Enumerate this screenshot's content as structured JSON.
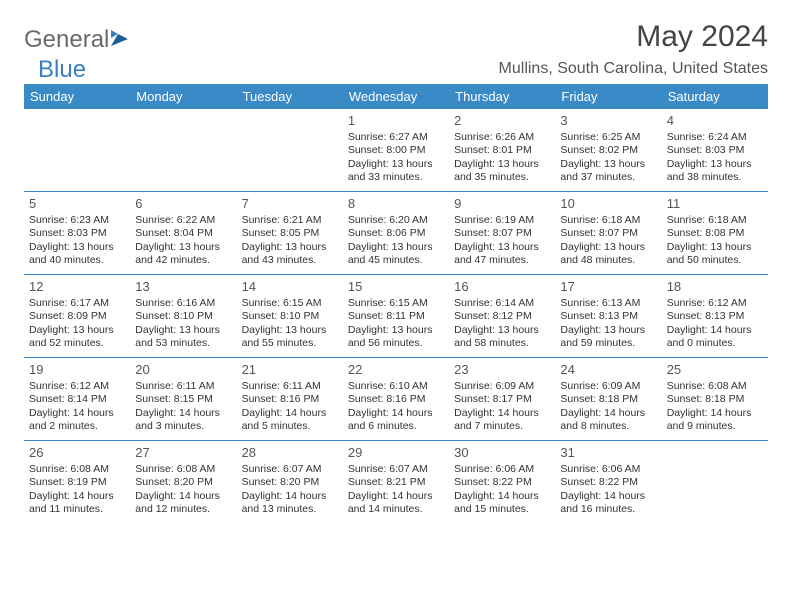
{
  "logo": {
    "part1": "General",
    "part2": "Blue"
  },
  "header": {
    "monthYear": "May 2024",
    "location": "Mullins, South Carolina, United States"
  },
  "daynames": [
    "Sunday",
    "Monday",
    "Tuesday",
    "Wednesday",
    "Thursday",
    "Friday",
    "Saturday"
  ],
  "colors": {
    "headerBar": "#3a8ac8",
    "weekBorder": "#3a8ac8",
    "logoGray": "#6a6a6a",
    "logoBlue": "#3a7fc4"
  },
  "weeks": [
    [
      {
        "n": "",
        "sr": "",
        "ss": "",
        "dl": ""
      },
      {
        "n": "",
        "sr": "",
        "ss": "",
        "dl": ""
      },
      {
        "n": "",
        "sr": "",
        "ss": "",
        "dl": ""
      },
      {
        "n": "1",
        "sr": "Sunrise: 6:27 AM",
        "ss": "Sunset: 8:00 PM",
        "dl": "Daylight: 13 hours and 33 minutes."
      },
      {
        "n": "2",
        "sr": "Sunrise: 6:26 AM",
        "ss": "Sunset: 8:01 PM",
        "dl": "Daylight: 13 hours and 35 minutes."
      },
      {
        "n": "3",
        "sr": "Sunrise: 6:25 AM",
        "ss": "Sunset: 8:02 PM",
        "dl": "Daylight: 13 hours and 37 minutes."
      },
      {
        "n": "4",
        "sr": "Sunrise: 6:24 AM",
        "ss": "Sunset: 8:03 PM",
        "dl": "Daylight: 13 hours and 38 minutes."
      }
    ],
    [
      {
        "n": "5",
        "sr": "Sunrise: 6:23 AM",
        "ss": "Sunset: 8:03 PM",
        "dl": "Daylight: 13 hours and 40 minutes."
      },
      {
        "n": "6",
        "sr": "Sunrise: 6:22 AM",
        "ss": "Sunset: 8:04 PM",
        "dl": "Daylight: 13 hours and 42 minutes."
      },
      {
        "n": "7",
        "sr": "Sunrise: 6:21 AM",
        "ss": "Sunset: 8:05 PM",
        "dl": "Daylight: 13 hours and 43 minutes."
      },
      {
        "n": "8",
        "sr": "Sunrise: 6:20 AM",
        "ss": "Sunset: 8:06 PM",
        "dl": "Daylight: 13 hours and 45 minutes."
      },
      {
        "n": "9",
        "sr": "Sunrise: 6:19 AM",
        "ss": "Sunset: 8:07 PM",
        "dl": "Daylight: 13 hours and 47 minutes."
      },
      {
        "n": "10",
        "sr": "Sunrise: 6:18 AM",
        "ss": "Sunset: 8:07 PM",
        "dl": "Daylight: 13 hours and 48 minutes."
      },
      {
        "n": "11",
        "sr": "Sunrise: 6:18 AM",
        "ss": "Sunset: 8:08 PM",
        "dl": "Daylight: 13 hours and 50 minutes."
      }
    ],
    [
      {
        "n": "12",
        "sr": "Sunrise: 6:17 AM",
        "ss": "Sunset: 8:09 PM",
        "dl": "Daylight: 13 hours and 52 minutes."
      },
      {
        "n": "13",
        "sr": "Sunrise: 6:16 AM",
        "ss": "Sunset: 8:10 PM",
        "dl": "Daylight: 13 hours and 53 minutes."
      },
      {
        "n": "14",
        "sr": "Sunrise: 6:15 AM",
        "ss": "Sunset: 8:10 PM",
        "dl": "Daylight: 13 hours and 55 minutes."
      },
      {
        "n": "15",
        "sr": "Sunrise: 6:15 AM",
        "ss": "Sunset: 8:11 PM",
        "dl": "Daylight: 13 hours and 56 minutes."
      },
      {
        "n": "16",
        "sr": "Sunrise: 6:14 AM",
        "ss": "Sunset: 8:12 PM",
        "dl": "Daylight: 13 hours and 58 minutes."
      },
      {
        "n": "17",
        "sr": "Sunrise: 6:13 AM",
        "ss": "Sunset: 8:13 PM",
        "dl": "Daylight: 13 hours and 59 minutes."
      },
      {
        "n": "18",
        "sr": "Sunrise: 6:12 AM",
        "ss": "Sunset: 8:13 PM",
        "dl": "Daylight: 14 hours and 0 minutes."
      }
    ],
    [
      {
        "n": "19",
        "sr": "Sunrise: 6:12 AM",
        "ss": "Sunset: 8:14 PM",
        "dl": "Daylight: 14 hours and 2 minutes."
      },
      {
        "n": "20",
        "sr": "Sunrise: 6:11 AM",
        "ss": "Sunset: 8:15 PM",
        "dl": "Daylight: 14 hours and 3 minutes."
      },
      {
        "n": "21",
        "sr": "Sunrise: 6:11 AM",
        "ss": "Sunset: 8:16 PM",
        "dl": "Daylight: 14 hours and 5 minutes."
      },
      {
        "n": "22",
        "sr": "Sunrise: 6:10 AM",
        "ss": "Sunset: 8:16 PM",
        "dl": "Daylight: 14 hours and 6 minutes."
      },
      {
        "n": "23",
        "sr": "Sunrise: 6:09 AM",
        "ss": "Sunset: 8:17 PM",
        "dl": "Daylight: 14 hours and 7 minutes."
      },
      {
        "n": "24",
        "sr": "Sunrise: 6:09 AM",
        "ss": "Sunset: 8:18 PM",
        "dl": "Daylight: 14 hours and 8 minutes."
      },
      {
        "n": "25",
        "sr": "Sunrise: 6:08 AM",
        "ss": "Sunset: 8:18 PM",
        "dl": "Daylight: 14 hours and 9 minutes."
      }
    ],
    [
      {
        "n": "26",
        "sr": "Sunrise: 6:08 AM",
        "ss": "Sunset: 8:19 PM",
        "dl": "Daylight: 14 hours and 11 minutes."
      },
      {
        "n": "27",
        "sr": "Sunrise: 6:08 AM",
        "ss": "Sunset: 8:20 PM",
        "dl": "Daylight: 14 hours and 12 minutes."
      },
      {
        "n": "28",
        "sr": "Sunrise: 6:07 AM",
        "ss": "Sunset: 8:20 PM",
        "dl": "Daylight: 14 hours and 13 minutes."
      },
      {
        "n": "29",
        "sr": "Sunrise: 6:07 AM",
        "ss": "Sunset: 8:21 PM",
        "dl": "Daylight: 14 hours and 14 minutes."
      },
      {
        "n": "30",
        "sr": "Sunrise: 6:06 AM",
        "ss": "Sunset: 8:22 PM",
        "dl": "Daylight: 14 hours and 15 minutes."
      },
      {
        "n": "31",
        "sr": "Sunrise: 6:06 AM",
        "ss": "Sunset: 8:22 PM",
        "dl": "Daylight: 14 hours and 16 minutes."
      },
      {
        "n": "",
        "sr": "",
        "ss": "",
        "dl": ""
      }
    ]
  ]
}
